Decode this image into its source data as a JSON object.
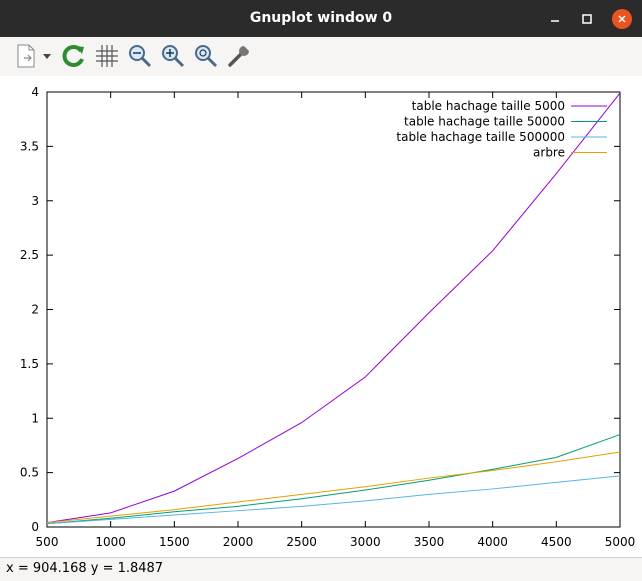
{
  "window": {
    "title": "Gnuplot window 0",
    "minimize_icon": "minimize-icon",
    "maximize_icon": "maximize-icon",
    "close_icon": "close-icon"
  },
  "toolbar": {
    "items": [
      {
        "name": "export-button",
        "icon": "document-export-icon"
      },
      {
        "name": "export-menu-button",
        "icon": "chevron-down-icon"
      },
      {
        "name": "replot-button",
        "icon": "refresh-icon"
      },
      {
        "name": "grid-button",
        "icon": "grid-icon"
      },
      {
        "name": "zoom-back-button",
        "icon": "zoom-out-icon"
      },
      {
        "name": "zoom-forward-button",
        "icon": "zoom-in-icon"
      },
      {
        "name": "zoom-reset-button",
        "icon": "zoom-reset-icon"
      },
      {
        "name": "config-button",
        "icon": "wrench-icon"
      }
    ]
  },
  "status": {
    "text": "x = 904.168 y = 1.8487"
  },
  "chart_data": {
    "type": "line",
    "x": [
      500,
      1000,
      1500,
      2000,
      2500,
      3000,
      3500,
      4000,
      4500,
      5000
    ],
    "xlim": [
      500,
      5000
    ],
    "ylim": [
      0,
      4
    ],
    "xticks": [
      500,
      1000,
      1500,
      2000,
      2500,
      3000,
      3500,
      4000,
      4500,
      5000
    ],
    "yticks": [
      0,
      0.5,
      1,
      1.5,
      2,
      2.5,
      3,
      3.5,
      4
    ],
    "ytick_labels": [
      "0",
      "0.5",
      "1",
      "1.5",
      "2",
      "2.5",
      "3",
      "3.5",
      "4"
    ],
    "grid": false,
    "legend_position": "top-right",
    "series": [
      {
        "name": "table hachage taille 5000",
        "color": "#9400d3",
        "values": [
          0.04,
          0.13,
          0.33,
          0.63,
          0.96,
          1.38,
          1.97,
          2.54,
          3.25,
          3.99
        ]
      },
      {
        "name": "table hachage taille 50000",
        "color": "#009e73",
        "values": [
          0.03,
          0.08,
          0.14,
          0.19,
          0.26,
          0.34,
          0.43,
          0.53,
          0.64,
          0.85
        ]
      },
      {
        "name": "table hachage taille 500000",
        "color": "#56b4e9",
        "values": [
          0.03,
          0.07,
          0.11,
          0.15,
          0.19,
          0.24,
          0.3,
          0.35,
          0.41,
          0.47
        ]
      },
      {
        "name": "arbre",
        "color": "#e69f00",
        "values": [
          0.04,
          0.1,
          0.16,
          0.23,
          0.3,
          0.37,
          0.45,
          0.52,
          0.6,
          0.69
        ]
      }
    ]
  }
}
